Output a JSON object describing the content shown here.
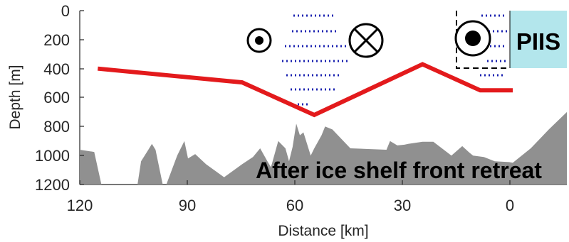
{
  "chart_data": {
    "type": "area",
    "title": "",
    "xlabel": "Distance [km]",
    "ylabel": "Depth [m]",
    "xlim": [
      120,
      -15
    ],
    "ylim": [
      0,
      1200
    ],
    "x_direction": "reversed",
    "y_direction": "reversed (depth increases downward)",
    "x_ticks": [
      "120",
      "90",
      "60",
      "30",
      "0"
    ],
    "y_ticks": [
      "0",
      "200",
      "400",
      "600",
      "800",
      "1000",
      "1200"
    ],
    "grid": false,
    "annotations": {
      "ice_shelf": "PIIS",
      "caption": "After ice shelf front retreat"
    },
    "series": [
      {
        "type": "line",
        "color": "#e31a1c",
        "x": [
          115,
          75,
          55,
          25,
          9,
          0
        ],
        "y": [
          400,
          495,
          720,
          370,
          550,
          550
        ]
      },
      {
        "type": "area",
        "color": "#909090",
        "x": [
          120,
          116,
          114,
          104,
          103,
          101,
          100,
          99,
          97,
          96,
          93,
          91,
          90,
          88,
          85,
          80,
          75,
          72,
          70,
          68,
          67,
          65,
          63,
          62,
          61,
          60,
          59,
          58,
          56,
          55,
          53,
          52,
          50,
          45,
          40,
          35,
          34,
          32,
          30,
          29,
          25,
          22,
          17,
          14,
          12,
          11,
          8,
          5,
          1,
          0,
          -5,
          -10,
          -15
        ],
        "y": [
          960,
          975,
          1200,
          1200,
          1040,
          960,
          920,
          960,
          1200,
          1200,
          1000,
          900,
          1020,
          990,
          1060,
          1150,
          1060,
          1010,
          950,
          1040,
          1080,
          900,
          950,
          1040,
          940,
          780,
          860,
          840,
          1000,
          950,
          860,
          800,
          820,
          950,
          955,
          960,
          900,
          930,
          925,
          920,
          905,
          905,
          1000,
          935,
          980,
          1000,
          1010,
          1040,
          1045,
          1050,
          950,
          820,
          700
        ]
      }
    ],
    "symbols": [
      {
        "kind": "out-of-page (dot)",
        "x": 70,
        "y": 210
      },
      {
        "kind": "into-page (cross)",
        "x": 40,
        "y": 200
      },
      {
        "kind": "out-of-page (dot, large)",
        "x": 10,
        "y": 200
      }
    ]
  },
  "colors": {
    "front_line": "#e31a1c",
    "bathymetry": "#909090",
    "ice_shelf": "#b3e6ec",
    "flow_dots": "#1a22b0"
  }
}
